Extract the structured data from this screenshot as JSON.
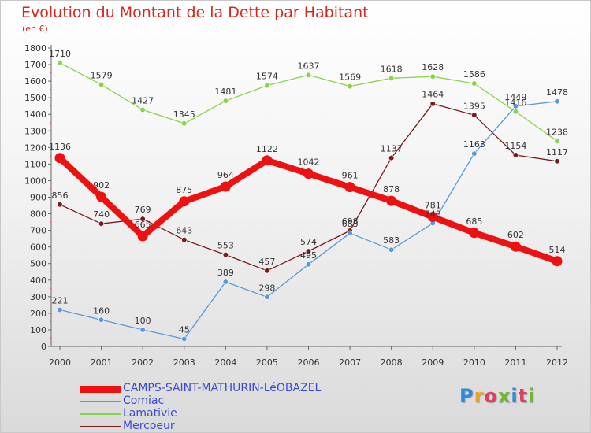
{
  "chart_data": {
    "type": "line",
    "title": "Evolution du Montant de la Dette par Habitant",
    "subtitle": "(en €)",
    "x": [
      "2000",
      "2001",
      "2002",
      "2003",
      "2004",
      "2005",
      "2006",
      "2007",
      "2008",
      "2009",
      "2010",
      "2011",
      "2012"
    ],
    "ylim": [
      0,
      1800
    ],
    "yticks": [
      0,
      100,
      200,
      300,
      400,
      500,
      600,
      700,
      800,
      900,
      1000,
      1100,
      1200,
      1300,
      1400,
      1500,
      1600,
      1700,
      1800
    ],
    "grid": false,
    "legend_position": "bottom-left",
    "series": [
      {
        "name": "Mercoeur",
        "color": "#7a1a1a",
        "values": [
          856,
          740,
          769,
          643,
          553,
          457,
          574,
          698,
          1137,
          1464,
          1395,
          1154,
          1117
        ]
      },
      {
        "name": "Lamativie",
        "color": "#88d44a",
        "values": [
          1710,
          1579,
          1427,
          1345,
          1481,
          1574,
          1637,
          1569,
          1618,
          1628,
          1586,
          1416,
          1238
        ]
      },
      {
        "name": "Comiac",
        "color": "#5a9ad6",
        "values": [
          221,
          160,
          100,
          45,
          389,
          298,
          495,
          683,
          583,
          743,
          1163,
          1449,
          1478
        ]
      },
      {
        "name": "CAMPS-SAINT-MATHURIN-LéOBAZEL",
        "color": "#ee1111",
        "values": [
          1136,
          902,
          665,
          875,
          964,
          1122,
          1042,
          961,
          878,
          781,
          685,
          602,
          514
        ]
      }
    ]
  },
  "legend": {
    "items": [
      {
        "label": "CAMPS-SAINT-MATHURIN-LéOBAZEL",
        "color": "#ee1111"
      },
      {
        "label": "Comiac",
        "color": "#5a9ad6"
      },
      {
        "label": "Lamativie",
        "color": "#88d44a"
      },
      {
        "label": "Mercoeur",
        "color": "#7a1a1a"
      }
    ]
  },
  "logo": {
    "text": "Proxiti"
  }
}
